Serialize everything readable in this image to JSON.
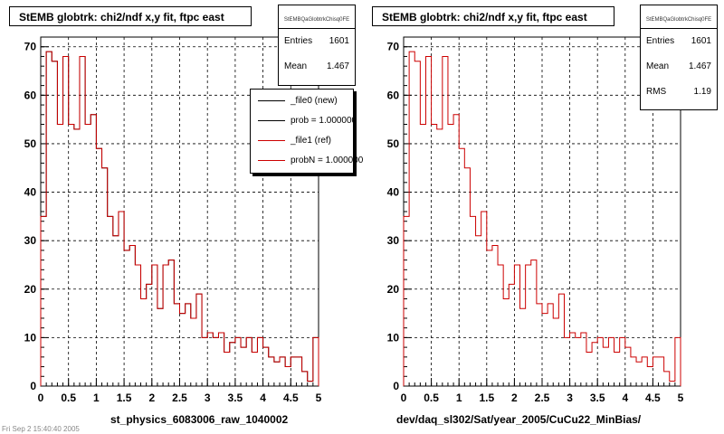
{
  "footer_text": "Fri Sep 2 15:40:40 2005",
  "panels": [
    {
      "title": "StEMB globtrk: chi2/ndf x,y fit, ftpc east",
      "xlabel": "st_physics_6083006_raw_1040002",
      "stats": {
        "name": "StEMBQaGlobtrkChisq0FE",
        "rows": [
          {
            "label": "Entries",
            "value": "1601"
          },
          {
            "label": "Mean",
            "value": "1.467"
          }
        ]
      },
      "legend": [
        {
          "label": "_file0 (new)",
          "color": "#000000"
        },
        {
          "label": "prob = 1.000000",
          "color": "#000000"
        },
        {
          "label": "_file1 (ref)",
          "color": "#cc0000"
        },
        {
          "label": "probN = 1.000000",
          "color": "#cc0000"
        }
      ]
    },
    {
      "title": "StEMB globtrk: chi2/ndf x,y fit, ftpc east",
      "xlabel": "dev/daq_sl302/Sat/year_2005/CuCu22_MinBias/",
      "stats": {
        "name": "StEMBQaGlobtrkChisq0FE",
        "rows": [
          {
            "label": "Entries",
            "value": "1601"
          },
          {
            "label": "Mean",
            "value": "1.467"
          },
          {
            "label": "RMS",
            "value": "1.19"
          }
        ]
      }
    }
  ],
  "chart_data": [
    {
      "type": "histogram",
      "title": "StEMB globtrk: chi2/ndf x,y fit, ftpc east",
      "xlabel": "st_physics_6083006_raw_1040002",
      "ylabel": "",
      "xlim": [
        0,
        5
      ],
      "ylim": [
        0,
        72
      ],
      "xticks": [
        "0",
        "0.5",
        "1",
        "1.5",
        "2",
        "2.5",
        "3",
        "3.5",
        "4",
        "4.5",
        "5"
      ],
      "yticks": [
        "0",
        "10",
        "20",
        "30",
        "40",
        "50",
        "60",
        "70"
      ],
      "grid": true,
      "legend_position": "top-right",
      "bin_edges_start": 0,
      "bin_width": 0.1,
      "series": [
        {
          "name": "_file0 (new)",
          "color": "#000000",
          "values": [
            35,
            69,
            67,
            54,
            68,
            54,
            53,
            68,
            54,
            56,
            49,
            45,
            35,
            31,
            36,
            28,
            29,
            25,
            18,
            21,
            25,
            16,
            25,
            26,
            17,
            15,
            17,
            14,
            19,
            10,
            11,
            10,
            11,
            7,
            9,
            10,
            8,
            10,
            7,
            10,
            8,
            6,
            5,
            6,
            4,
            6,
            6,
            3,
            1,
            10
          ]
        },
        {
          "name": "_file1 (ref)",
          "color": "#cc0000",
          "values": [
            35,
            69,
            67,
            54,
            68,
            54,
            53,
            68,
            54,
            56,
            49,
            45,
            35,
            31,
            36,
            28,
            29,
            25,
            18,
            21,
            25,
            16,
            25,
            26,
            17,
            15,
            17,
            14,
            19,
            10,
            11,
            10,
            11,
            7,
            9,
            10,
            8,
            10,
            7,
            10,
            8,
            6,
            5,
            6,
            4,
            6,
            6,
            3,
            1,
            10
          ]
        }
      ]
    },
    {
      "type": "histogram",
      "title": "StEMB globtrk: chi2/ndf x,y fit, ftpc east",
      "xlabel": "dev/daq_sl302/Sat/year_2005/CuCu22_MinBias/",
      "ylabel": "",
      "xlim": [
        0,
        5
      ],
      "ylim": [
        0,
        72
      ],
      "xticks": [
        "0",
        "0.5",
        "1",
        "1.5",
        "2",
        "2.5",
        "3",
        "3.5",
        "4",
        "4.5",
        "5"
      ],
      "yticks": [
        "0",
        "10",
        "20",
        "30",
        "40",
        "50",
        "60",
        "70"
      ],
      "grid": true,
      "bin_edges_start": 0,
      "bin_width": 0.1,
      "series": [
        {
          "name": "",
          "color": "#cc0000",
          "values": [
            35,
            69,
            67,
            54,
            68,
            54,
            53,
            68,
            54,
            56,
            49,
            45,
            35,
            31,
            36,
            28,
            29,
            25,
            18,
            21,
            25,
            16,
            25,
            26,
            17,
            15,
            17,
            14,
            19,
            10,
            11,
            10,
            11,
            7,
            9,
            10,
            8,
            10,
            7,
            10,
            8,
            6,
            5,
            6,
            4,
            6,
            6,
            3,
            1,
            10
          ]
        }
      ]
    }
  ]
}
